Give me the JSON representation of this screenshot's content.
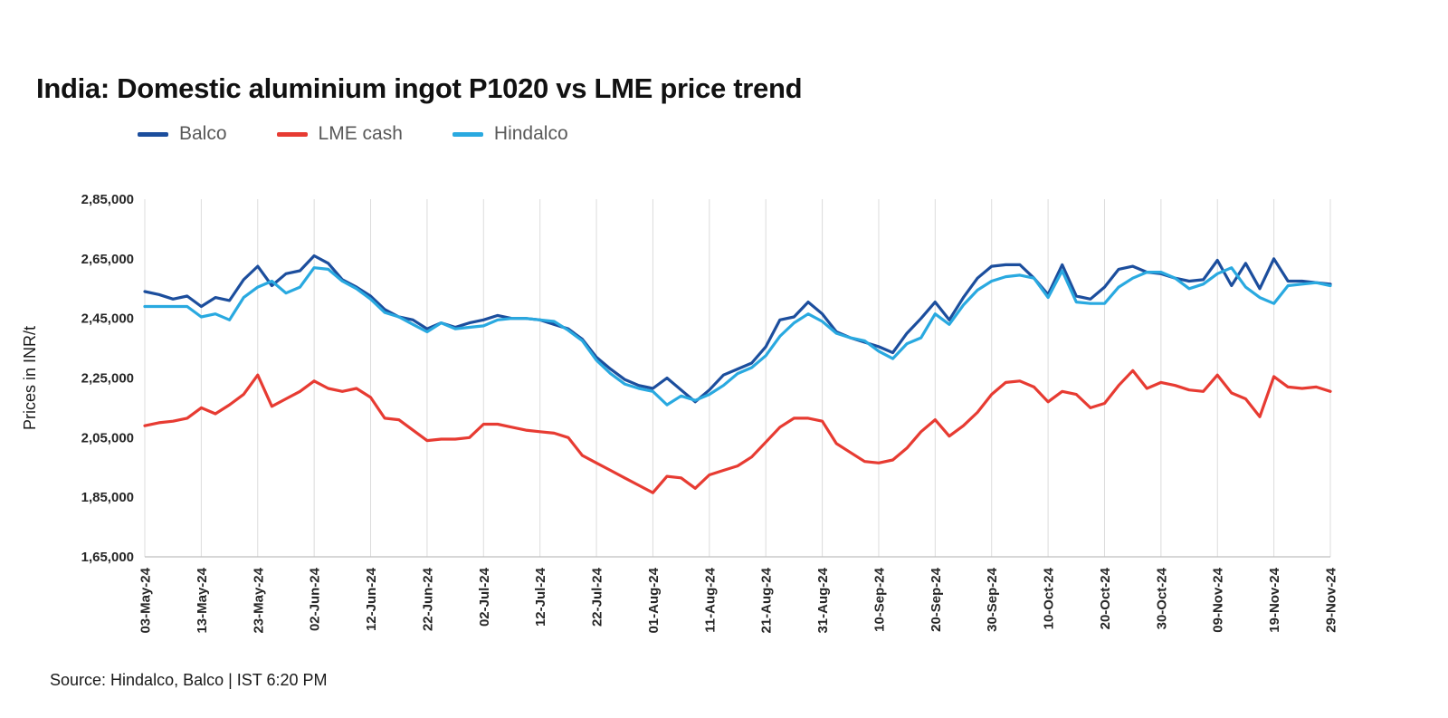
{
  "page": {
    "title": "India: Domestic aluminium ingot P1020 vs LME price trend",
    "source_note": "Source: Hindalco, Balco | IST 6:20 PM"
  },
  "chart_data": {
    "type": "line",
    "title": "India: Domestic aluminium ingot P1020 vs LME price trend",
    "xlabel": "",
    "ylabel": "Prices in INR/t",
    "ylim": [
      165000,
      285000
    ],
    "grid": "vertical",
    "legend_position": "top",
    "y_tick_values": [
      285000,
      265000,
      245000,
      225000,
      205000,
      185000,
      165000
    ],
    "y_tick_labels": [
      "2,85,000",
      "2,65,000",
      "2,45,000",
      "2,25,000",
      "2,05,000",
      "1,85,000",
      "1,65,000"
    ],
    "x_tick_labels": [
      "03-May-24",
      "13-May-24",
      "23-May-24",
      "02-Jun-24",
      "12-Jun-24",
      "22-Jun-24",
      "02-Jul-24",
      "12-Jul-24",
      "22-Jul-24",
      "01-Aug-24",
      "11-Aug-24",
      "21-Aug-24",
      "31-Aug-24",
      "10-Sep-24",
      "20-Sep-24",
      "30-Sep-24",
      "10-Oct-24",
      "20-Oct-24",
      "30-Oct-24",
      "09-Nov-24",
      "19-Nov-24",
      "29-Nov-24"
    ],
    "points_per_tick": 4,
    "series": [
      {
        "name": "Balco",
        "color": "#1c4e9d",
        "values": [
          254000,
          253000,
          251500,
          252500,
          249000,
          252000,
          251000,
          258000,
          262500,
          256000,
          260000,
          261000,
          266000,
          263500,
          258000,
          255500,
          252500,
          248000,
          245500,
          244500,
          241500,
          243500,
          242000,
          243500,
          244500,
          246000,
          245000,
          245000,
          244500,
          243000,
          241500,
          238000,
          232000,
          228000,
          224500,
          222500,
          221500,
          225000,
          221000,
          217000,
          221000,
          226000,
          228000,
          230000,
          235500,
          244500,
          245500,
          250500,
          246500,
          240500,
          238500,
          237000,
          235500,
          233500,
          240000,
          245000,
          250500,
          244500,
          252000,
          258500,
          262500,
          263000,
          263000,
          258500,
          253000,
          263000,
          252500,
          251500,
          255500,
          261500,
          262500,
          260500,
          260000,
          258500,
          257500,
          258000,
          264500,
          256000,
          263500,
          255000,
          265000,
          257500,
          257500,
          257000,
          256500
        ]
      },
      {
        "name": "LME cash",
        "color": "#e73b32",
        "values": [
          209000,
          210000,
          210500,
          211500,
          215000,
          213000,
          216000,
          219500,
          226000,
          215500,
          218000,
          220500,
          224000,
          221500,
          220500,
          221500,
          218500,
          211500,
          211000,
          207500,
          204000,
          204500,
          204500,
          205000,
          209500,
          209500,
          208500,
          207500,
          207000,
          206500,
          205000,
          199000,
          196500,
          194000,
          191500,
          189000,
          186500,
          192000,
          191500,
          188000,
          192500,
          194000,
          195500,
          198500,
          203500,
          208500,
          211500,
          211500,
          210500,
          203000,
          200000,
          197000,
          196500,
          197500,
          201500,
          207000,
          211000,
          205500,
          209000,
          213500,
          219500,
          223500,
          224000,
          222000,
          217000,
          220500,
          219500,
          215000,
          216500,
          222500,
          227500,
          221500,
          223500,
          222500,
          221000,
          220500,
          226000,
          220000,
          218000,
          212000,
          225500,
          222000,
          221500,
          222000,
          220500
        ]
      },
      {
        "name": "Hindalco",
        "color": "#29a9e0",
        "values": [
          249000,
          249000,
          249000,
          249000,
          245500,
          246500,
          244500,
          252000,
          255500,
          257500,
          253500,
          255500,
          262000,
          261500,
          257500,
          255000,
          251500,
          247000,
          245500,
          243000,
          240500,
          243500,
          241500,
          242000,
          242500,
          244500,
          245000,
          245000,
          244500,
          244000,
          241000,
          237500,
          231000,
          226500,
          223000,
          221500,
          220500,
          216000,
          219000,
          217500,
          219500,
          222500,
          226500,
          228500,
          232500,
          239000,
          243500,
          246500,
          244000,
          240000,
          238500,
          237500,
          234000,
          231500,
          236500,
          238500,
          246500,
          243000,
          249500,
          254500,
          257500,
          259000,
          259500,
          258500,
          252000,
          261000,
          250500,
          250000,
          250000,
          255500,
          258500,
          260500,
          260500,
          258500,
          255000,
          256500,
          260000,
          262000,
          255500,
          252000,
          250000,
          256000,
          256500,
          257000,
          256000
        ]
      }
    ]
  }
}
